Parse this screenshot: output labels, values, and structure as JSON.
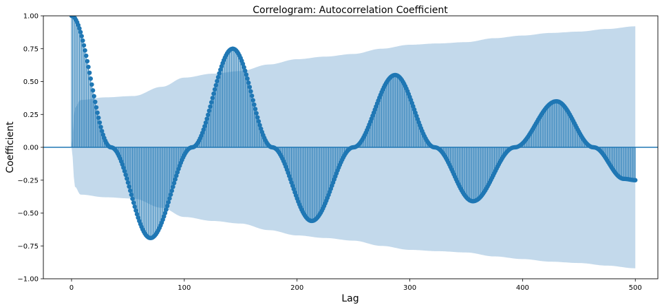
{
  "chart_data": {
    "type": "stem",
    "title": "Correlogram: Autocorrelation Coefficient",
    "xlabel": "Lag",
    "ylabel": "Coefficient",
    "xlim": [
      -25,
      520
    ],
    "ylim": [
      -1.0,
      1.0
    ],
    "xticks": [
      0,
      100,
      200,
      300,
      400,
      500
    ],
    "yticks": [
      -1.0,
      -0.75,
      -0.5,
      -0.25,
      0.0,
      0.25,
      0.5,
      0.75,
      1.0
    ],
    "ytick_labels": [
      "−1.00",
      "−0.75",
      "−0.50",
      "−0.25",
      "0.00",
      "0.25",
      "0.50",
      "0.75",
      "1.00"
    ],
    "max_lag": 500,
    "acf_keypoints": [
      [
        0,
        1.0
      ],
      [
        35,
        0.0
      ],
      [
        70,
        -0.69
      ],
      [
        107,
        0.0
      ],
      [
        143,
        0.75
      ],
      [
        178,
        0.0
      ],
      [
        213,
        -0.56
      ],
      [
        250,
        0.0
      ],
      [
        287,
        0.55
      ],
      [
        322,
        0.0
      ],
      [
        356,
        -0.41
      ],
      [
        393,
        0.0
      ],
      [
        430,
        0.35
      ],
      [
        463,
        0.0
      ],
      [
        490,
        -0.24
      ],
      [
        500,
        -0.25
      ]
    ],
    "confidence_band_upper": [
      [
        0,
        0.0
      ],
      [
        3,
        0.3
      ],
      [
        8,
        0.36
      ],
      [
        30,
        0.38
      ],
      [
        55,
        0.39
      ],
      [
        80,
        0.46
      ],
      [
        100,
        0.53
      ],
      [
        125,
        0.56
      ],
      [
        150,
        0.58
      ],
      [
        175,
        0.63
      ],
      [
        200,
        0.67
      ],
      [
        225,
        0.69
      ],
      [
        250,
        0.71
      ],
      [
        275,
        0.75
      ],
      [
        300,
        0.78
      ],
      [
        325,
        0.79
      ],
      [
        350,
        0.8
      ],
      [
        375,
        0.83
      ],
      [
        400,
        0.85
      ],
      [
        425,
        0.87
      ],
      [
        450,
        0.88
      ],
      [
        475,
        0.9
      ],
      [
        500,
        0.92
      ]
    ],
    "colors": {
      "stem": "#1f77b4",
      "band": "#c3d9eb",
      "baseline": "#1f77b4"
    },
    "grid": false
  }
}
